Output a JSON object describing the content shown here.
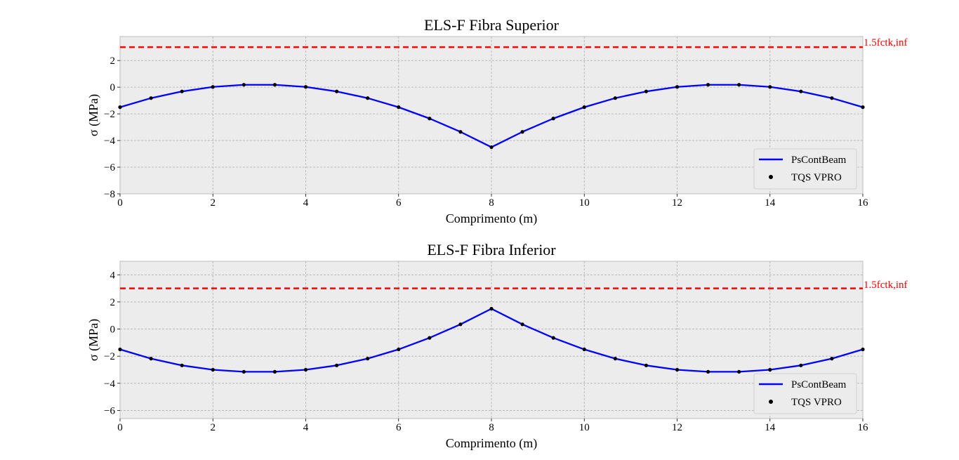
{
  "colors": {
    "series_line": "#0000ff",
    "series_points": "#000000",
    "limit_line": "#ff0000",
    "plot_background": "#ececec",
    "grid": "#b0b0b0"
  },
  "chart_data": [
    {
      "type": "line",
      "title": "ELS-F Fibra Superior",
      "xlabel": "Comprimento (m)",
      "ylabel": "σ (MPa)",
      "xlim": [
        0,
        16
      ],
      "ylim": [
        -8,
        3.8
      ],
      "xticks": [
        0,
        2,
        4,
        6,
        8,
        10,
        12,
        14,
        16
      ],
      "xtick_labels": [
        "0",
        "2",
        "4",
        "6",
        "8",
        "10",
        "12",
        "14",
        "16"
      ],
      "yticks": [
        -8,
        -6,
        -4,
        -2,
        0,
        2
      ],
      "ytick_labels": [
        "−8",
        "−6",
        "−4",
        "−2",
        "0",
        "2"
      ],
      "grid": true,
      "legend_position": "lower-right",
      "series": [
        {
          "name": "PsContBeam",
          "kind": "line",
          "x": [
            0,
            0.6667,
            1.3333,
            2,
            2.6667,
            3.3333,
            4,
            4.6667,
            5.3333,
            6,
            6.6667,
            7.3333,
            8,
            8.6667,
            9.3333,
            10,
            10.6667,
            11.3333,
            12,
            12.6667,
            13.3333,
            14,
            14.6667,
            15.3333,
            16
          ],
          "values": [
            -1.5,
            -0.82,
            -0.32,
            0.02,
            0.18,
            0.18,
            0.02,
            -0.32,
            -0.82,
            -1.5,
            -2.35,
            -3.35,
            -4.5,
            -3.35,
            -2.35,
            -1.5,
            -0.82,
            -0.32,
            0.02,
            0.18,
            0.18,
            0.02,
            -0.32,
            -0.82,
            -1.5
          ]
        },
        {
          "name": "TQS VPRO",
          "kind": "points",
          "x": [
            0,
            0.6667,
            1.3333,
            2,
            2.6667,
            3.3333,
            4,
            4.6667,
            5.3333,
            6,
            6.6667,
            7.3333,
            8,
            8.6667,
            9.3333,
            10,
            10.6667,
            11.3333,
            12,
            12.6667,
            13.3333,
            14,
            14.6667,
            15.3333,
            16
          ],
          "values": [
            -1.5,
            -0.82,
            -0.32,
            0.02,
            0.18,
            0.18,
            0.02,
            -0.32,
            -0.82,
            -1.5,
            -2.35,
            -3.35,
            -4.5,
            -3.35,
            -2.35,
            -1.5,
            -0.82,
            -0.32,
            0.02,
            0.18,
            0.18,
            0.02,
            -0.32,
            -0.82,
            -1.5
          ]
        }
      ],
      "reference_line": {
        "y": 3.0,
        "label": "1.5fctk,inf"
      }
    },
    {
      "type": "line",
      "title": "ELS-F Fibra Inferior",
      "xlabel": "Comprimento (m)",
      "ylabel": "σ (MPa)",
      "xlim": [
        0,
        16
      ],
      "ylim": [
        -6.6,
        5
      ],
      "xticks": [
        0,
        2,
        4,
        6,
        8,
        10,
        12,
        14,
        16
      ],
      "xtick_labels": [
        "0",
        "2",
        "4",
        "6",
        "8",
        "10",
        "12",
        "14",
        "16"
      ],
      "yticks": [
        -6,
        -4,
        -2,
        0,
        2,
        4
      ],
      "ytick_labels": [
        "−6",
        "−4",
        "−2",
        "0",
        "2",
        "4"
      ],
      "grid": true,
      "legend_position": "lower-right",
      "series": [
        {
          "name": "PsContBeam",
          "kind": "line",
          "x": [
            0,
            0.6667,
            1.3333,
            2,
            2.6667,
            3.3333,
            4,
            4.6667,
            5.3333,
            6,
            6.6667,
            7.3333,
            8,
            8.6667,
            9.3333,
            10,
            10.6667,
            11.3333,
            12,
            12.6667,
            13.3333,
            14,
            14.6667,
            15.3333,
            16
          ],
          "values": [
            -1.5,
            -2.18,
            -2.68,
            -3.0,
            -3.15,
            -3.15,
            -3.0,
            -2.68,
            -2.18,
            -1.5,
            -0.65,
            0.35,
            1.5,
            0.35,
            -0.65,
            -1.5,
            -2.18,
            -2.68,
            -3.0,
            -3.15,
            -3.15,
            -3.0,
            -2.68,
            -2.18,
            -1.5
          ]
        },
        {
          "name": "TQS VPRO",
          "kind": "points",
          "x": [
            0,
            0.6667,
            1.3333,
            2,
            2.6667,
            3.3333,
            4,
            4.6667,
            5.3333,
            6,
            6.6667,
            7.3333,
            8,
            8.6667,
            9.3333,
            10,
            10.6667,
            11.3333,
            12,
            12.6667,
            13.3333,
            14,
            14.6667,
            15.3333,
            16
          ],
          "values": [
            -1.5,
            -2.18,
            -2.68,
            -3.0,
            -3.15,
            -3.15,
            -3.0,
            -2.68,
            -2.18,
            -1.5,
            -0.65,
            0.35,
            1.5,
            0.35,
            -0.65,
            -1.5,
            -2.18,
            -2.68,
            -3.0,
            -3.15,
            -3.15,
            -3.0,
            -2.68,
            -2.18,
            -1.5
          ]
        }
      ],
      "reference_line": {
        "y": 3.0,
        "label": "1.5fctk,inf"
      }
    }
  ]
}
